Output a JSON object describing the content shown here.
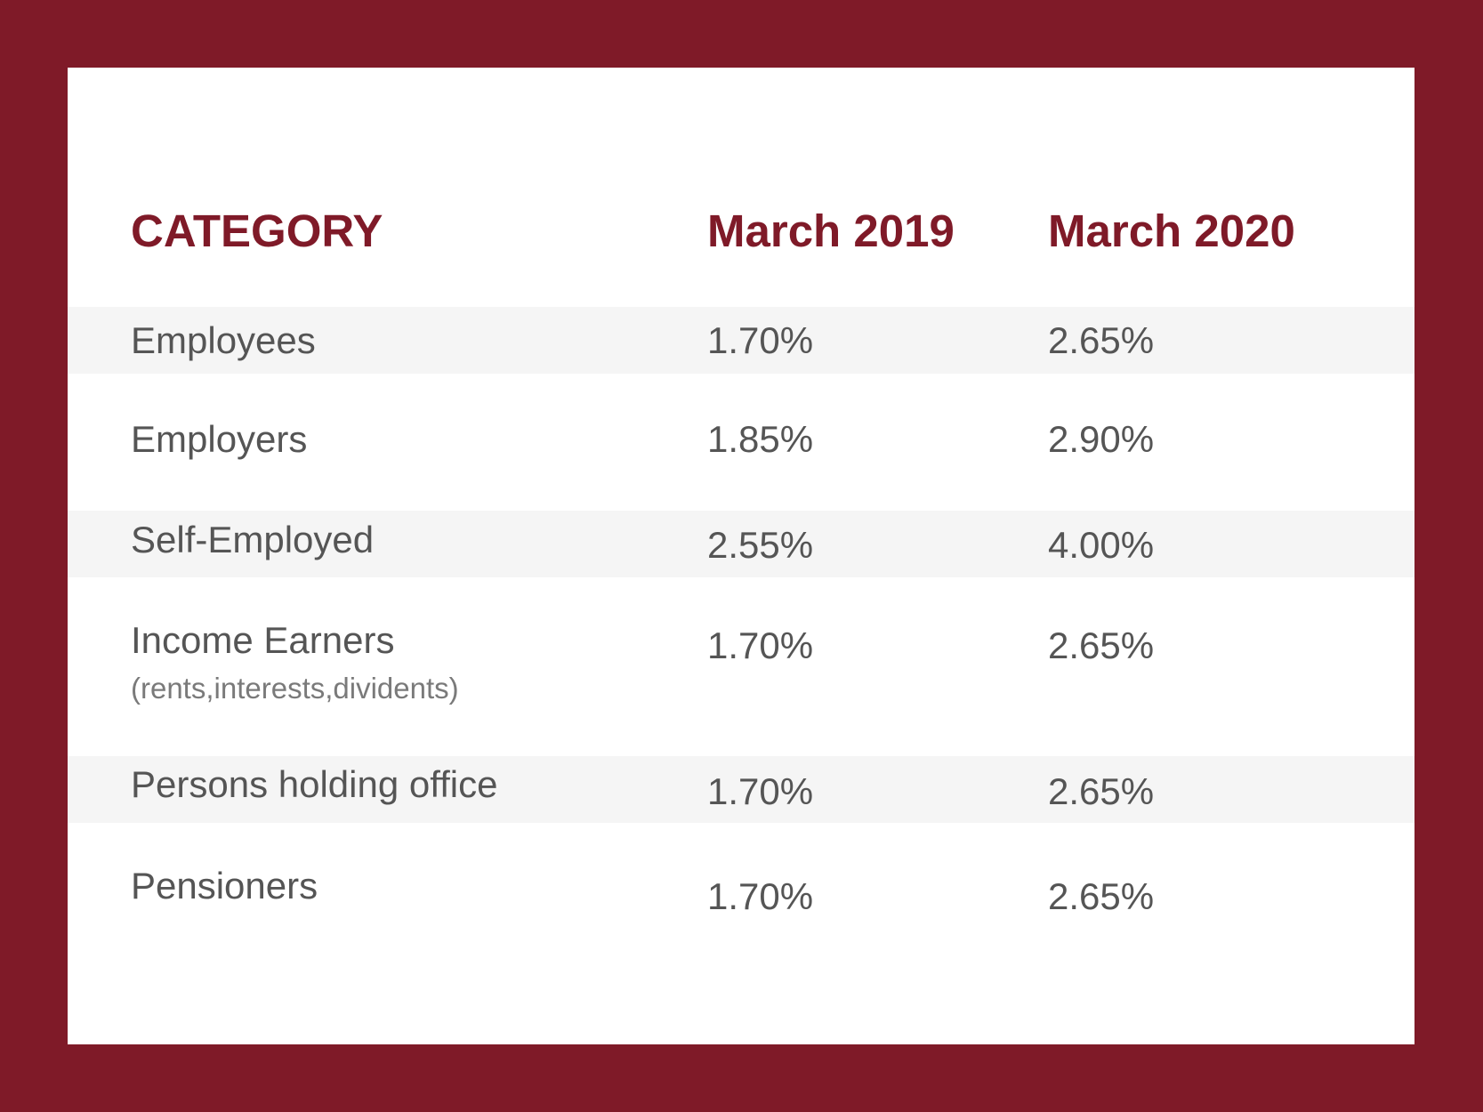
{
  "table": {
    "header": [
      "CATEGORY",
      "March 2019",
      "March 2020"
    ],
    "rows": [
      {
        "category": "Employees",
        "values": [
          "1.70%",
          "2.65%"
        ]
      },
      {
        "category": "Employers",
        "values": [
          "1.85%",
          "2.90%"
        ]
      },
      {
        "category": "Self-Employed",
        "values": [
          "2.55%",
          "4.00%"
        ]
      },
      {
        "category": "Income Earners",
        "note": "(rents,interests,dividents)",
        "values": [
          "1.70%",
          "2.65%"
        ]
      },
      {
        "category": "Persons holding office",
        "values": [
          "1.70%",
          "2.65%"
        ]
      },
      {
        "category": "Pensioners",
        "values": [
          "1.70%",
          "2.65%"
        ]
      }
    ]
  }
}
